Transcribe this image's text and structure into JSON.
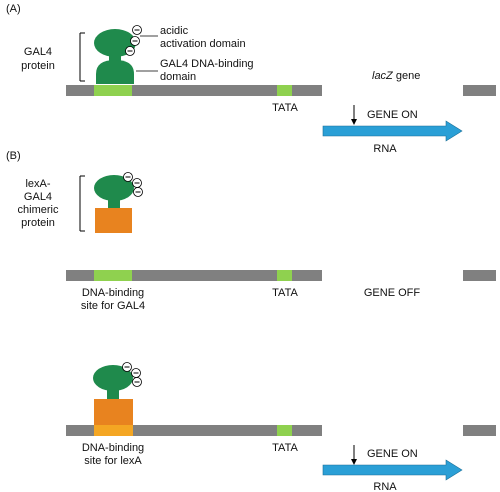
{
  "colors": {
    "dna": "#808080",
    "gal4_site": "#8fd14f",
    "lexa_site": "#f4a623",
    "tata": "#8fd14f",
    "gene": "#ffffff",
    "protein_green": "#1f8a4c",
    "lexa_orange": "#e8831f",
    "arrow": "#2a9fd6",
    "charge": "#ffffff"
  },
  "panel_a": {
    "label": "(A)",
    "protein_label_line1": "GAL4",
    "protein_label_line2": "protein",
    "activation_line1": "acidic",
    "activation_line2": "activation domain",
    "binding_line1": "GAL4 DNA-binding",
    "binding_line2": "domain",
    "gene_label_italic": "lacZ",
    "gene_label_rest": " gene",
    "tata": "TATA",
    "state": "GENE ON",
    "rna": "RNA"
  },
  "panel_b": {
    "label": "(B)",
    "chimera_line1": "lexA-",
    "chimera_line2": "GAL4",
    "chimera_line3": "chimeric",
    "chimera_line4": "protein",
    "mid": {
      "site_line1": "DNA-binding",
      "site_line2": "site for GAL4",
      "tata": "TATA",
      "state": "GENE OFF"
    },
    "bottom": {
      "site_line1": "DNA-binding",
      "site_line2": "site for lexA",
      "tata": "TATA",
      "state": "GENE ON",
      "rna": "RNA"
    }
  },
  "charge_symbol": "⊖"
}
